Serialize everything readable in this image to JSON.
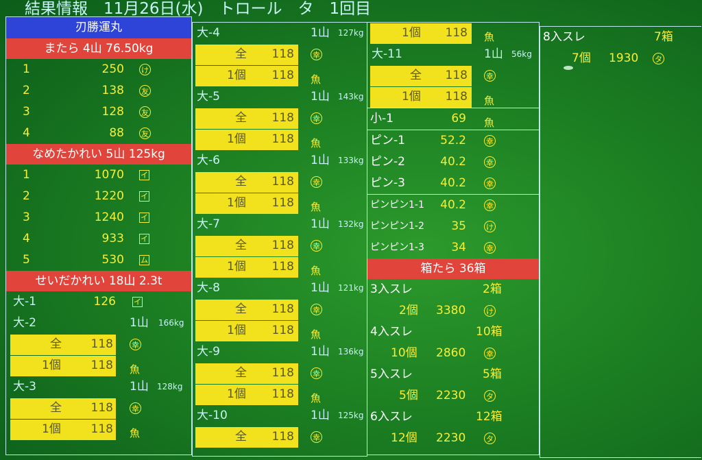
{
  "header": {
    "title": "結果情報　11月26日(水)　トロール　タ　1回目"
  },
  "col1": {
    "ship": "刃勝運丸",
    "matara": {
      "title": "またら 4山 76.50kg",
      "rows": [
        {
          "n": "1",
          "v": "250",
          "mark": "け"
        },
        {
          "n": "2",
          "v": "138",
          "mark": "友"
        },
        {
          "n": "3",
          "v": "128",
          "mark": "友"
        },
        {
          "n": "4",
          "v": "88",
          "mark": "友"
        }
      ]
    },
    "nameta": {
      "title": "なめたかれい 5山 125kg",
      "rows": [
        {
          "n": "1",
          "v": "1070",
          "mark": "イ"
        },
        {
          "n": "2",
          "v": "1220",
          "mark": "イ"
        },
        {
          "n": "3",
          "v": "1240",
          "mark": "イ"
        },
        {
          "n": "4",
          "v": "933",
          "mark": "イ"
        },
        {
          "n": "5",
          "v": "530",
          "mark": "ム"
        }
      ]
    },
    "seida": {
      "title": "せいだかれい 18山 2.3t",
      "dai1": {
        "name": "大-1",
        "v": "126",
        "mark": "イ"
      },
      "dai2": {
        "name": "大-2",
        "yama": "1山",
        "kg": "166kg",
        "all_l": "全",
        "all_v": "118",
        "one_l": "1個",
        "one_v": "118",
        "m1": "幸",
        "m2": "魚"
      },
      "dai3": {
        "name": "大-3",
        "yama": "1山",
        "kg": "128kg",
        "all_l": "全",
        "all_v": "118",
        "one_l": "1個",
        "one_v": "118",
        "m1": "幸",
        "m2": "魚"
      }
    }
  },
  "col2": {
    "blocks": [
      {
        "name": "大-4",
        "yama": "1山",
        "kg": "127kg",
        "all_l": "全",
        "all_v": "118",
        "one_l": "1個",
        "one_v": "118",
        "m1": "幸",
        "m2": "魚"
      },
      {
        "name": "大-5",
        "yama": "1山",
        "kg": "143kg",
        "all_l": "全",
        "all_v": "118",
        "one_l": "1個",
        "one_v": "118",
        "m1": "幸",
        "m2": "魚"
      },
      {
        "name": "大-6",
        "yama": "1山",
        "kg": "133kg",
        "all_l": "全",
        "all_v": "118",
        "one_l": "1個",
        "one_v": "118",
        "m1": "幸",
        "m2": "魚"
      },
      {
        "name": "大-7",
        "yama": "1山",
        "kg": "132kg",
        "all_l": "全",
        "all_v": "118",
        "one_l": "1個",
        "one_v": "118",
        "m1": "幸",
        "m2": "魚"
      },
      {
        "name": "大-8",
        "yama": "1山",
        "kg": "121kg",
        "all_l": "全",
        "all_v": "118",
        "one_l": "1個",
        "one_v": "118",
        "m1": "幸",
        "m2": "魚"
      },
      {
        "name": "大-9",
        "yama": "1山",
        "kg": "136kg",
        "all_l": "全",
        "all_v": "118",
        "one_l": "1個",
        "one_v": "118",
        "m1": "幸",
        "m2": "魚"
      }
    ],
    "dai10": {
      "name": "大-10",
      "yama": "1山",
      "kg": "125kg",
      "all_l": "全",
      "all_v": "118",
      "m1": "幸"
    }
  },
  "col3": {
    "top": {
      "l": "1個",
      "v": "118",
      "mark": "魚"
    },
    "dai11": {
      "name": "大-11",
      "yama": "1山",
      "kg": "56kg",
      "all_l": "全",
      "all_v": "118",
      "one_l": "1個",
      "one_v": "118",
      "m1": "幸",
      "m2": "魚"
    },
    "sho1": {
      "name": "小-1",
      "v": "69",
      "mark": "魚"
    },
    "pin": [
      {
        "name": "ピン-1",
        "v": "52.2",
        "mark": "幸"
      },
      {
        "name": "ピン-2",
        "v": "40.2",
        "mark": "幸"
      },
      {
        "name": "ピン-3",
        "v": "40.2",
        "mark": "幸"
      }
    ],
    "pinpin": [
      {
        "name": "ピンピン1-1",
        "v": "40.2",
        "mark": "幸"
      },
      {
        "name": "ピンピン1-2",
        "v": "35",
        "mark": "け"
      },
      {
        "name": "ピンピン1-3",
        "v": "34",
        "mark": "幸"
      }
    ],
    "hako": {
      "title": "箱たら 36箱",
      "items": [
        {
          "name": "3入スレ",
          "boxes": "2箱",
          "count": "2個",
          "price": "3380",
          "mark": "け"
        },
        {
          "name": "4入スレ",
          "boxes": "10箱",
          "count": "10個",
          "price": "2860",
          "mark": "幸"
        },
        {
          "name": "5入スレ",
          "boxes": "5箱",
          "count": "5個",
          "price": "2230",
          "mark": "タ"
        },
        {
          "name": "6入スレ",
          "boxes": "12箱",
          "count": "12個",
          "price": "2230",
          "mark": "タ"
        }
      ]
    }
  },
  "col4": {
    "name": "8入スレ",
    "boxes": "7箱",
    "count": "7個",
    "price": "1930",
    "mark": "タ"
  }
}
